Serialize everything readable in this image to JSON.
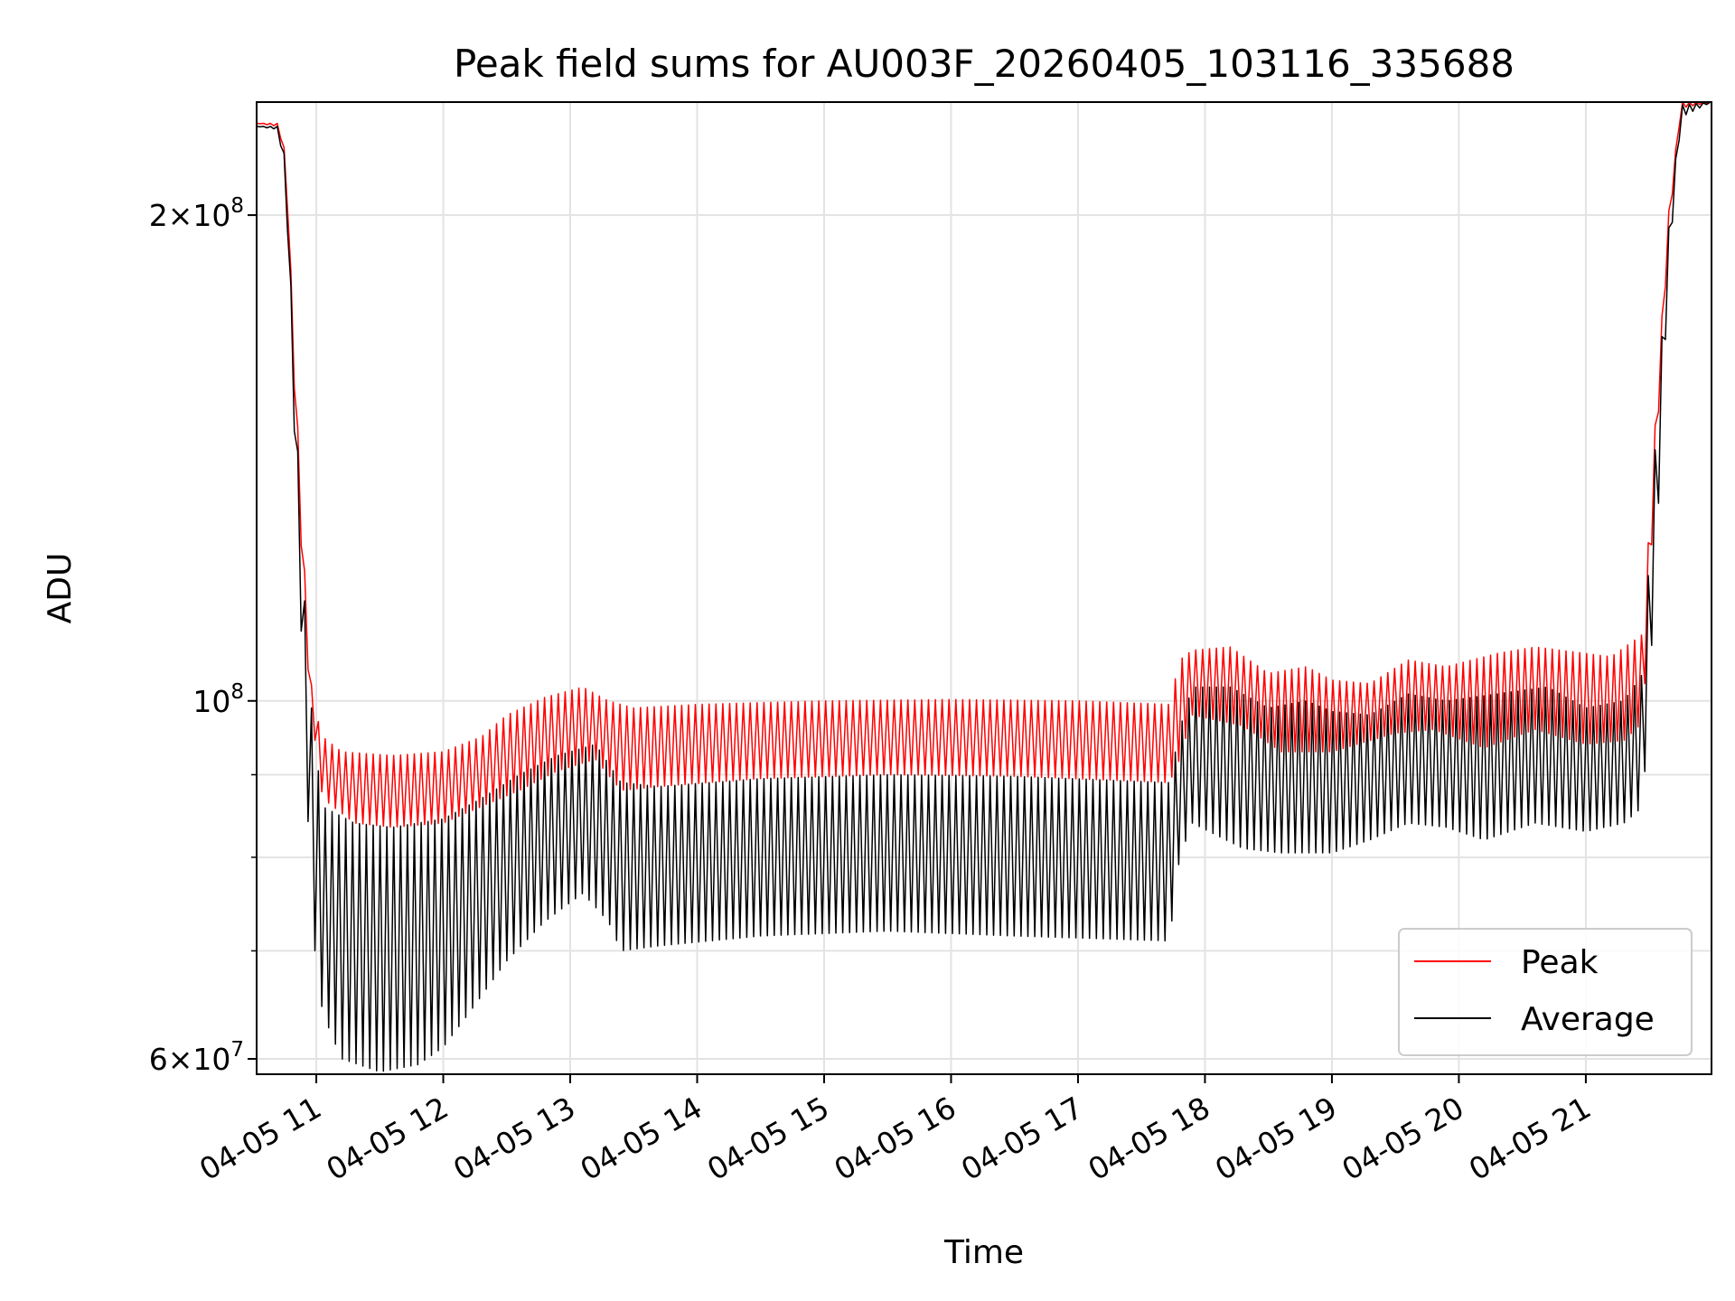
{
  "chart_data": {
    "type": "line",
    "title": "Peak field sums for AU003F_20260405_103116_335688",
    "xlabel": "Time",
    "ylabel": "ADU",
    "yscale": "log",
    "ylim": [
      58700000,
      235000000
    ],
    "xlim_hours": [
      10.53,
      21.99
    ],
    "grid": true,
    "legend_placement": "lower right",
    "x_ticks": [
      {
        "hour": 11,
        "label": "04-05 11"
      },
      {
        "hour": 12,
        "label": "04-05 12"
      },
      {
        "hour": 13,
        "label": "04-05 13"
      },
      {
        "hour": 14,
        "label": "04-05 14"
      },
      {
        "hour": 15,
        "label": "04-05 15"
      },
      {
        "hour": 16,
        "label": "04-05 16"
      },
      {
        "hour": 17,
        "label": "04-05 17"
      },
      {
        "hour": 18,
        "label": "04-05 18"
      },
      {
        "hour": 19,
        "label": "04-05 19"
      },
      {
        "hour": 20,
        "label": "04-05 20"
      },
      {
        "hour": 21,
        "label": "04-05 21"
      }
    ],
    "y_major_ticks": [
      {
        "value": 60000000,
        "base": "6×10",
        "exp": "7"
      },
      {
        "value": 100000000,
        "base": "10",
        "exp": "8"
      },
      {
        "value": 200000000,
        "base": "2×10",
        "exp": "8"
      }
    ],
    "y_minor_ticks": [
      70000000,
      80000000,
      90000000
    ],
    "series": [
      {
        "name": "Peak",
        "color": "#ff0000",
        "oscillating": true,
        "upper_envelope": [
          [
            10.53,
            228000000
          ],
          [
            10.7,
            228000000
          ],
          [
            10.76,
            218000000
          ],
          [
            10.85,
            150000000
          ],
          [
            10.92,
            115000000
          ],
          [
            10.97,
            100000000
          ],
          [
            11.05,
            95000000
          ],
          [
            11.2,
            93000000
          ],
          [
            11.6,
            92500000
          ],
          [
            12.0,
            93000000
          ],
          [
            12.3,
            95000000
          ],
          [
            12.5,
            98000000
          ],
          [
            12.8,
            100500000
          ],
          [
            13.1,
            102000000
          ],
          [
            13.3,
            100000000
          ],
          [
            13.5,
            99000000
          ],
          [
            14.0,
            99500000
          ],
          [
            15.0,
            100000000
          ],
          [
            16.0,
            100200000
          ],
          [
            17.0,
            100000000
          ],
          [
            17.72,
            99500000
          ],
          [
            17.8,
            106000000
          ],
          [
            17.9,
            107500000
          ],
          [
            18.2,
            108000000
          ],
          [
            18.5,
            104000000
          ],
          [
            18.8,
            105000000
          ],
          [
            19.0,
            103000000
          ],
          [
            19.3,
            102500000
          ],
          [
            19.6,
            106000000
          ],
          [
            19.9,
            105000000
          ],
          [
            20.0,
            105500000
          ],
          [
            20.3,
            107000000
          ],
          [
            20.6,
            108000000
          ],
          [
            21.0,
            107000000
          ],
          [
            21.2,
            106500000
          ],
          [
            21.45,
            110000000
          ],
          [
            21.55,
            150000000
          ],
          [
            21.65,
            200000000
          ],
          [
            21.75,
            235000000
          ],
          [
            21.99,
            235000000
          ]
        ],
        "lower_envelope": [
          [
            10.53,
            228000000
          ],
          [
            10.7,
            227000000
          ],
          [
            10.76,
            215000000
          ],
          [
            10.85,
            140000000
          ],
          [
            10.92,
            108000000
          ],
          [
            10.97,
            97000000
          ],
          [
            11.05,
            87000000
          ],
          [
            11.3,
            84000000
          ],
          [
            11.6,
            83500000
          ],
          [
            12.0,
            84000000
          ],
          [
            12.3,
            86000000
          ],
          [
            12.6,
            88000000
          ],
          [
            12.9,
            90500000
          ],
          [
            13.2,
            92000000
          ],
          [
            13.4,
            88000000
          ],
          [
            13.7,
            88500000
          ],
          [
            14.5,
            89500000
          ],
          [
            15.5,
            90000000
          ],
          [
            16.5,
            89800000
          ],
          [
            17.72,
            89000000
          ],
          [
            17.8,
            92000000
          ],
          [
            17.9,
            98000000
          ],
          [
            18.3,
            96500000
          ],
          [
            18.6,
            93000000
          ],
          [
            19.0,
            93000000
          ],
          [
            19.5,
            95500000
          ],
          [
            19.8,
            96000000
          ],
          [
            20.2,
            93500000
          ],
          [
            20.6,
            96000000
          ],
          [
            21.0,
            94000000
          ],
          [
            21.3,
            94500000
          ],
          [
            21.45,
            97000000
          ],
          [
            21.55,
            140000000
          ],
          [
            21.65,
            195000000
          ],
          [
            21.75,
            233000000
          ],
          [
            21.99,
            235000000
          ]
        ]
      },
      {
        "name": "Average",
        "color": "#000000",
        "oscillating": true,
        "upper_envelope": [
          [
            10.53,
            227000000
          ],
          [
            10.7,
            227000000
          ],
          [
            10.76,
            216000000
          ],
          [
            10.85,
            145000000
          ],
          [
            10.92,
            110000000
          ],
          [
            10.97,
            97000000
          ],
          [
            11.05,
            86000000
          ],
          [
            11.3,
            84000000
          ],
          [
            11.6,
            83500000
          ],
          [
            12.0,
            84500000
          ],
          [
            12.3,
            87000000
          ],
          [
            12.6,
            90000000
          ],
          [
            12.9,
            92500000
          ],
          [
            13.2,
            94000000
          ],
          [
            13.4,
            89000000
          ],
          [
            13.7,
            88500000
          ],
          [
            14.5,
            89500000
          ],
          [
            15.5,
            90000000
          ],
          [
            16.5,
            89800000
          ],
          [
            17.72,
            89000000
          ],
          [
            17.8,
            96000000
          ],
          [
            17.9,
            102000000
          ],
          [
            18.2,
            102000000
          ],
          [
            18.5,
            99000000
          ],
          [
            18.8,
            100000000
          ],
          [
            19.0,
            98500000
          ],
          [
            19.3,
            98000000
          ],
          [
            19.6,
            101000000
          ],
          [
            19.9,
            100000000
          ],
          [
            20.3,
            101000000
          ],
          [
            20.7,
            102000000
          ],
          [
            21.0,
            99000000
          ],
          [
            21.3,
            100000000
          ],
          [
            21.45,
            104000000
          ],
          [
            21.55,
            145000000
          ],
          [
            21.65,
            195000000
          ],
          [
            21.75,
            234000000
          ],
          [
            21.99,
            235000000
          ]
        ],
        "lower_envelope": [
          [
            10.53,
            227000000
          ],
          [
            10.7,
            226000000
          ],
          [
            10.76,
            210000000
          ],
          [
            10.85,
            130000000
          ],
          [
            10.92,
            90000000
          ],
          [
            10.97,
            72000000
          ],
          [
            11.05,
            64000000
          ],
          [
            11.2,
            60000000
          ],
          [
            11.5,
            58900000
          ],
          [
            11.8,
            59500000
          ],
          [
            12.0,
            61000000
          ],
          [
            12.2,
            64000000
          ],
          [
            12.5,
            69000000
          ],
          [
            12.8,
            73000000
          ],
          [
            13.1,
            76000000
          ],
          [
            13.3,
            73000000
          ],
          [
            13.4,
            70000000
          ],
          [
            13.7,
            70500000
          ],
          [
            14.5,
            71500000
          ],
          [
            15.5,
            72000000
          ],
          [
            16.5,
            71500000
          ],
          [
            17.72,
            71000000
          ],
          [
            17.8,
            80000000
          ],
          [
            17.9,
            84000000
          ],
          [
            18.3,
            81000000
          ],
          [
            18.6,
            80500000
          ],
          [
            19.0,
            80500000
          ],
          [
            19.3,
            82000000
          ],
          [
            19.6,
            84000000
          ],
          [
            19.9,
            83500000
          ],
          [
            20.2,
            82000000
          ],
          [
            20.6,
            84000000
          ],
          [
            21.0,
            83000000
          ],
          [
            21.3,
            84000000
          ],
          [
            21.45,
            86000000
          ],
          [
            21.55,
            120000000
          ],
          [
            21.65,
            185000000
          ],
          [
            21.75,
            230000000
          ],
          [
            21.99,
            235000000
          ]
        ]
      }
    ]
  }
}
